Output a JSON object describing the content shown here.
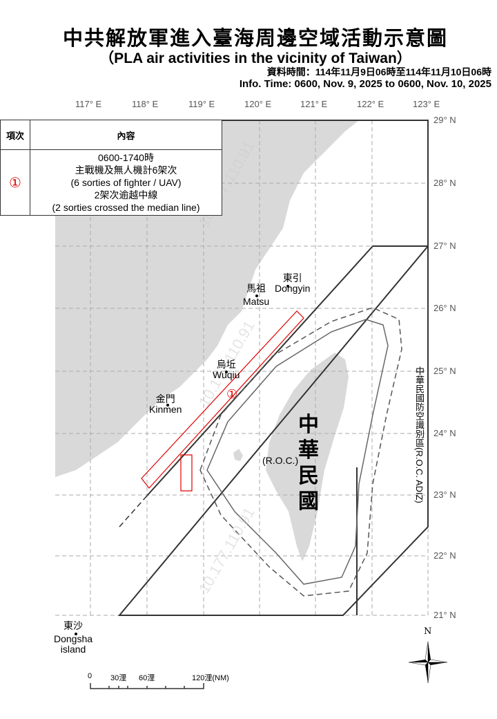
{
  "header": {
    "title": "中共解放軍進入臺海周邊空域活動示意圖",
    "subtitle": "（PLA air activities in the vicinity of Taiwan）",
    "time_zh": "資料時間：114年11月9日06時至114年11月10日06時",
    "time_en": "Info. Time: 0600, Nov. 9, 2025 to 0600, Nov. 10, 2025"
  },
  "table": {
    "col_item": "項次",
    "col_content": "內容",
    "rows": [
      {
        "marker": "①",
        "time": "0600-1740時",
        "line1_zh": "主戰機及無人機計6架次",
        "line1_en": "(6 sorties of fighter / UAV)",
        "line2_zh": "2架次逾越中線",
        "line2_en": "(2 sorties crossed the median line)"
      }
    ]
  },
  "map": {
    "longitudes": [
      "117° E",
      "118° E",
      "119° E",
      "120° E",
      "121° E",
      "122° E",
      "123° E"
    ],
    "latitudes": [
      "29° N",
      "28° N",
      "27° N",
      "26° N",
      "25° N",
      "24° N",
      "23° N",
      "22° N",
      "21° N"
    ],
    "places": {
      "dongyin_zh": "東引",
      "dongyin_en": "Dongyin",
      "matsu_zh": "馬祖",
      "matsu_en": "Matsu",
      "wuqiu_zh": "烏坵",
      "wuqiu_en": "Wuqiu",
      "kinmen_zh": "金門",
      "kinmen_en": "Kinmen",
      "dongsha_zh": "東沙",
      "dongsha_en": "Dongsha",
      "dongsha_en2": "island",
      "roc_zh": "中華民國",
      "roc_en": "(R.O.C.)",
      "adiz_label": "中華民國防空識別區(R.O.C. ADIZ)"
    },
    "track_marker": "①",
    "watermark": "10.177.110.91",
    "colors": {
      "land": "#d9d9d9",
      "track": "#e00000"
    }
  },
  "scale": {
    "labels": [
      "0",
      "30浬",
      "60浬",
      "120浬(NM)"
    ]
  },
  "compass": {
    "north": "N"
  }
}
